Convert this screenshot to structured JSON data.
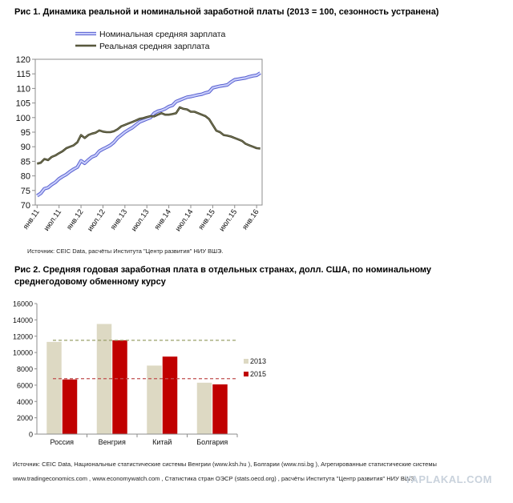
{
  "fig1": {
    "title": "Рис 1. Динамика реальной и номинальной заработной платы (2013 = 100, сезонность устранена)",
    "source": "Источник: CEIC Data, расчёты Института \"Центр развития\" НИУ ВШЭ."
  },
  "fig2": {
    "title": "Рис 2. Средняя годовая заработная плата в отдельных странах, долл. США, по номинальному среднегодовому обменному курсу",
    "source_line1": "Источник: CEIC Data, Национальные статистические системы Венгрии (www.ksh.hu ), Болгарии (www.nsi.bg ), Агрегированные статистические системы",
    "source_line2": "www.tradingeconomics.com , www.economywatch.com , Статистика стран ОЭСР (stats.oecd.org) , расчёты Института \"Центр развития\" НИУ ВШЭ"
  },
  "watermark": "YAPLAKAL.COM",
  "chart_data": [
    {
      "type": "line",
      "ylim": [
        70,
        120
      ],
      "yticks": [
        70,
        75,
        80,
        85,
        90,
        95,
        100,
        105,
        110,
        115,
        120
      ],
      "xtick_labels": [
        "янв.11",
        "июл.11",
        "янв.12",
        "июл.12",
        "янв.13",
        "июл.13",
        "янв.14",
        "июл.14",
        "янв.15",
        "июл.15",
        "янв.16"
      ],
      "x_months": [
        "янв.11",
        "фев.11",
        "мар.11",
        "апр.11",
        "май.11",
        "июн.11",
        "июл.11",
        "авг.11",
        "сен.11",
        "окт.11",
        "ноя.11",
        "дек.11",
        "янв.12",
        "фев.12",
        "мар.12",
        "апр.12",
        "май.12",
        "июн.12",
        "июл.12",
        "авг.12",
        "сен.12",
        "окт.12",
        "ноя.12",
        "дек.12",
        "янв.13",
        "фев.13",
        "мар.13",
        "апр.13",
        "май.13",
        "июн.13",
        "июл.13",
        "авг.13",
        "сен.13",
        "окт.13",
        "ноя.13",
        "дек.13",
        "янв.14",
        "фев.14",
        "мар.14",
        "апр.14",
        "май.14",
        "июн.14",
        "июл.14",
        "авг.14",
        "сен.14",
        "окт.14",
        "ноя.14",
        "дек.14",
        "янв.15",
        "фев.15",
        "мар.15",
        "апр.15",
        "май.15",
        "июн.15",
        "июл.15",
        "авг.15",
        "сен.15",
        "окт.15",
        "ноя.15",
        "дек.15",
        "янв.16",
        "фев.16"
      ],
      "grid": false,
      "legend_position": "top-left",
      "series": [
        {
          "name": "Номинальная средняя зарплата",
          "color": "#8a93e8",
          "values": [
            73.2,
            74.0,
            75.6,
            76.0,
            77.0,
            77.8,
            79.0,
            79.8,
            80.5,
            81.5,
            82.3,
            83.0,
            85.2,
            84.3,
            85.5,
            86.5,
            87.0,
            88.5,
            89.2,
            89.8,
            90.5,
            91.5,
            93.0,
            94.0,
            95.0,
            95.8,
            96.5,
            97.5,
            98.5,
            99.0,
            99.5,
            100.0,
            101.5,
            102.2,
            102.5,
            103.0,
            103.8,
            104.2,
            105.5,
            106.0,
            106.5,
            107.0,
            107.2,
            107.5,
            107.8,
            108.0,
            108.5,
            108.8,
            110.2,
            110.5,
            110.8,
            111.0,
            111.2,
            112.2,
            113.0,
            113.2,
            113.4,
            113.6,
            114.0,
            114.3,
            114.5,
            115.3
          ]
        },
        {
          "name": "Реальная средняя зарплата",
          "color": "#4d4d2e",
          "values": [
            84.2,
            84.5,
            85.8,
            85.4,
            86.5,
            87.0,
            87.8,
            88.5,
            89.5,
            90.0,
            90.5,
            91.5,
            94.0,
            93.0,
            94.0,
            94.5,
            94.8,
            95.6,
            95.2,
            95.0,
            95.0,
            95.3,
            96.0,
            97.0,
            97.5,
            98.0,
            98.5,
            99.0,
            99.6,
            99.8,
            100.2,
            100.5,
            100.4,
            101.0,
            101.5,
            101.0,
            101.0,
            101.2,
            101.5,
            103.5,
            103.0,
            102.8,
            102.0,
            102.0,
            101.5,
            101.0,
            100.5,
            99.5,
            97.5,
            95.5,
            95.0,
            94.0,
            93.8,
            93.5,
            93.0,
            92.5,
            92.0,
            91.0,
            90.5,
            90.0,
            89.5,
            89.4
          ]
        }
      ]
    },
    {
      "type": "bar",
      "categories": [
        "Россия",
        "Венгрия",
        "Китай",
        "Болгария"
      ],
      "ylim": [
        0,
        16000
      ],
      "yticks": [
        0,
        2000,
        4000,
        6000,
        8000,
        10000,
        12000,
        14000,
        16000
      ],
      "grid": false,
      "legend_position": "right",
      "series": [
        {
          "name": "2013",
          "color": "#ddd9c3",
          "values": [
            11300,
            13500,
            8400,
            6300
          ]
        },
        {
          "name": "2015",
          "color": "#c00000",
          "values": [
            6700,
            11500,
            9500,
            6100
          ]
        }
      ],
      "reference_lines": [
        {
          "value": 11500,
          "color": "#9aa06a"
        },
        {
          "value": 6800,
          "color": "#c05050"
        }
      ]
    }
  ]
}
